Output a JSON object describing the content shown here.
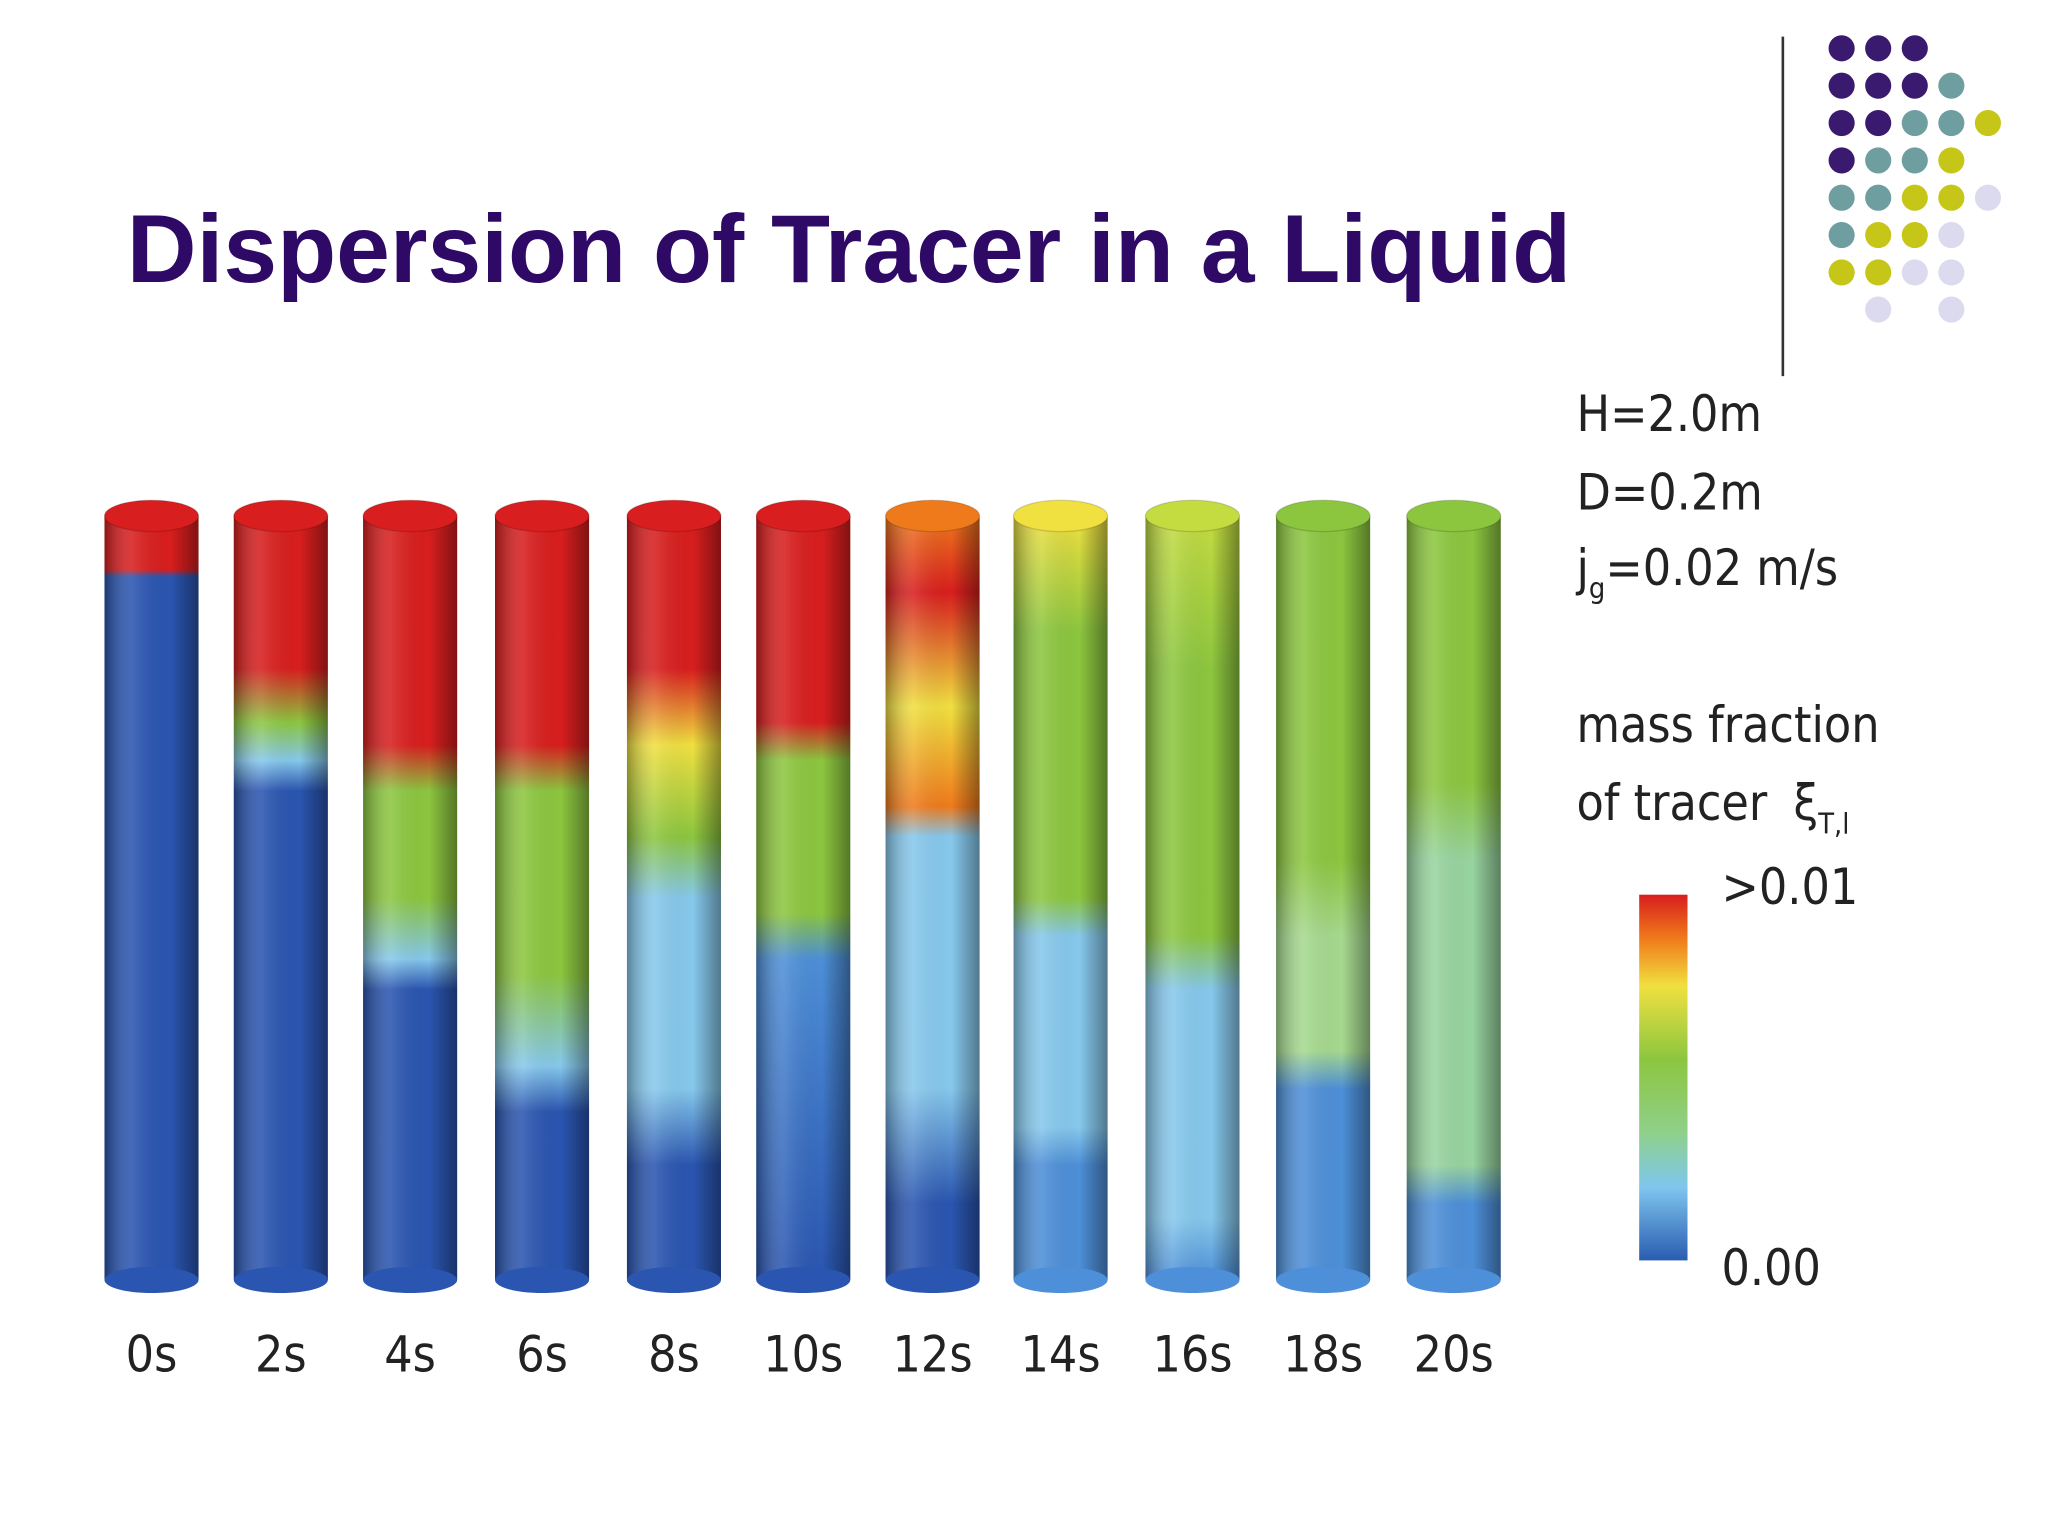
{
  "title": "Dispersion of Tracer in a Liquid",
  "figure": {
    "times": [
      "0s",
      "2s",
      "4s",
      "6s",
      "8s",
      "10s",
      "12s",
      "14s",
      "16s",
      "18s",
      "20s"
    ],
    "parameters": [
      "H=2.0m",
      "D=0.2m"
    ],
    "velocity": {
      "symbol": "j",
      "subscript": "g",
      "text": "=0.02 m/s"
    },
    "legend": {
      "title_line1": "mass fraction",
      "title_line2": "of tracer",
      "symbol": "ξ",
      "symbol_subscript": "T,l",
      "max_label": ">0.01",
      "min_label": "0.00"
    }
  }
}
